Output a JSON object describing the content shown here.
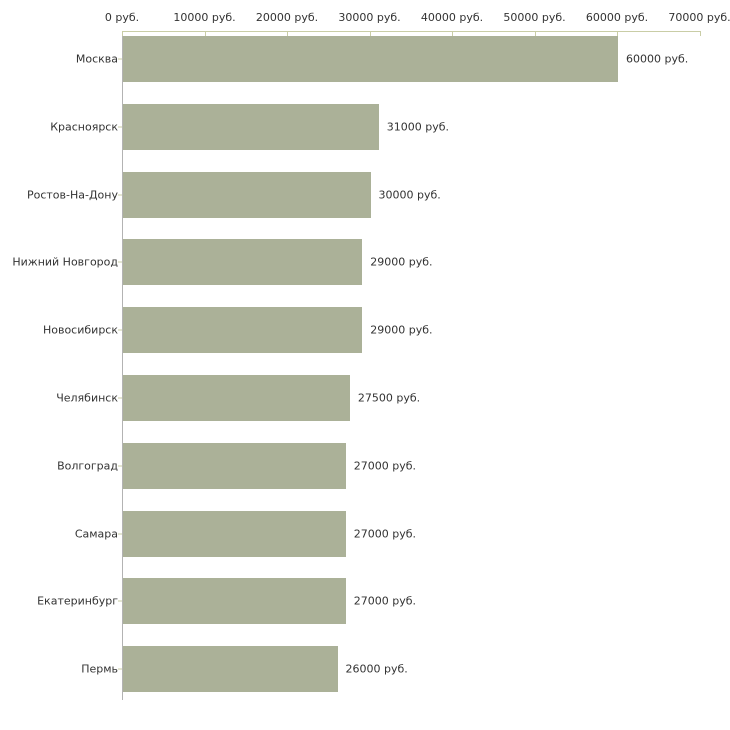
{
  "chart_data": {
    "type": "bar",
    "orientation": "horizontal",
    "title": "",
    "xlabel": "",
    "ylabel": "",
    "categories": [
      "Москва",
      "Красноярск",
      "Ростов-На-Дону",
      "Нижний Новгород",
      "Новосибирск",
      "Челябинск",
      "Волгоград",
      "Самара",
      "Екатеринбург",
      "Пермь"
    ],
    "values": [
      60000,
      31000,
      30000,
      29000,
      29000,
      27500,
      27000,
      27000,
      27000,
      26000
    ],
    "value_labels": [
      "60000 руб.",
      "31000 руб.",
      "30000 руб.",
      "29000 руб.",
      "29000 руб.",
      "27500 руб.",
      "27000 руб.",
      "27000 руб.",
      "27000 руб.",
      "26000 руб."
    ],
    "x_ticks": [
      0,
      10000,
      20000,
      30000,
      40000,
      50000,
      60000,
      70000
    ],
    "x_tick_labels": [
      "0 руб.",
      "10000 руб.",
      "20000 руб.",
      "30000 руб.",
      "40000 руб.",
      "50000 руб.",
      "60000 руб.",
      "70000 руб."
    ],
    "xlim": [
      0,
      70000
    ],
    "unit": "руб.",
    "grid": false,
    "legend_position": "none",
    "bar_color": "#abb198",
    "x_axis_color": "#c9cda6",
    "y_axis_color": "#b3b3b3",
    "text_color": "#333333",
    "background_color": "#ffffff"
  }
}
